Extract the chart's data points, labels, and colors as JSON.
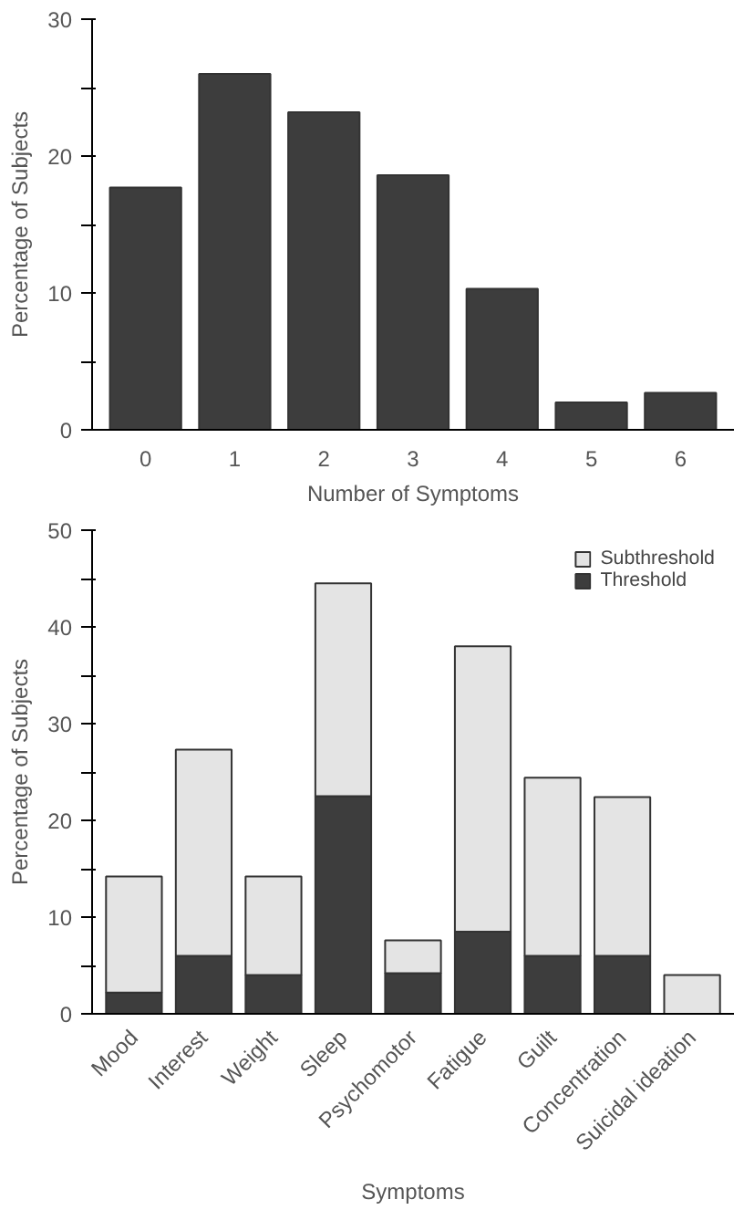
{
  "chart_data": [
    {
      "type": "bar",
      "categories": [
        "0",
        "1",
        "2",
        "3",
        "4",
        "5",
        "6"
      ],
      "values": [
        17.7,
        26,
        23.2,
        18.6,
        10.3,
        2,
        2.7
      ],
      "color": "#3d3d3d",
      "xlabel": "Number of Symptoms",
      "ylabel": "Percentage of Subjects",
      "ylim": [
        0,
        30
      ],
      "yticks": [
        0,
        {
          "value": 5,
          "label": null
        },
        10,
        {
          "value": 15,
          "label": null
        },
        20,
        {
          "value": 25,
          "label": null
        },
        30
      ],
      "grid": false
    },
    {
      "type": "bar",
      "stacked": true,
      "categories": [
        "Mood",
        "Interest",
        "Weight",
        "Sleep",
        "Psychomotor",
        "Fatigue",
        "Guilt",
        "Concentration",
        "Suicidal ideation"
      ],
      "series": [
        {
          "name": "Threshold",
          "color": "#3d3d3d",
          "values": [
            2.2,
            6,
            4,
            22.5,
            4.2,
            8.5,
            6,
            6,
            0
          ]
        },
        {
          "name": "Subthreshold",
          "color": "#e4e4e4",
          "values": [
            12,
            21.3,
            10.2,
            22,
            3.4,
            29.5,
            18.4,
            16.4,
            4
          ]
        }
      ],
      "xlabel": "Symptoms",
      "ylabel": "Percentage of Subjects",
      "ylim": [
        0,
        50
      ],
      "yticks": [
        0,
        {
          "value": 5,
          "label": null
        },
        10,
        {
          "value": 15,
          "label": null
        },
        20,
        {
          "value": 25,
          "label": null
        },
        30,
        {
          "value": 35,
          "label": null
        },
        40,
        {
          "value": 45,
          "label": null
        },
        50
      ],
      "legend": "top right",
      "grid": false
    }
  ]
}
